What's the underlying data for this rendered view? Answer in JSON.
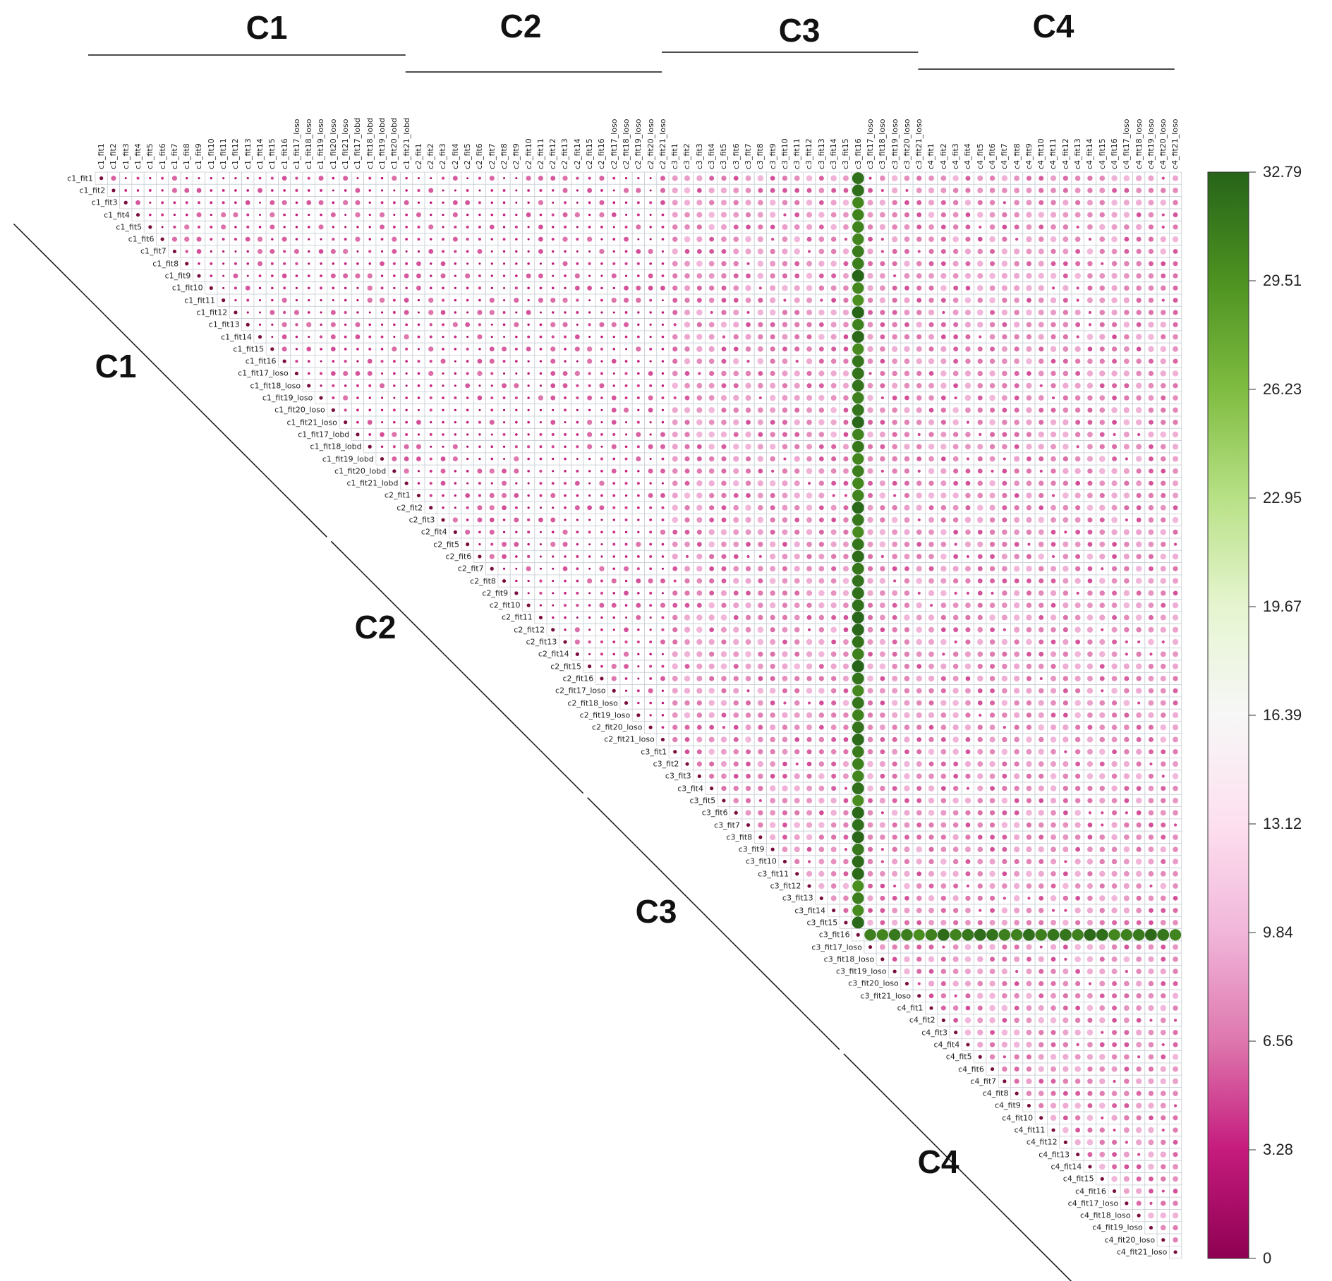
{
  "chart_data": {
    "type": "heatmap",
    "subtype": "upper-triangular correlation-style dot matrix",
    "groups": [
      "C1",
      "C2",
      "C3",
      "C4"
    ],
    "group_sizes": [
      26,
      21,
      21,
      21
    ],
    "labels": [
      "c1_fit1",
      "c1_fit2",
      "c1_fit3",
      "c1_fit4",
      "c1_fit5",
      "c1_fit6",
      "c1_fit7",
      "c1_fit8",
      "c1_fit9",
      "c1_fit10",
      "c1_fit11",
      "c1_fit12",
      "c1_fit13",
      "c1_fit14",
      "c1_fit15",
      "c1_fit16",
      "c1_fit17_loso",
      "c1_fit18_loso",
      "c1_fit19_loso",
      "c1_fit20_loso",
      "c1_fit21_loso",
      "c1_fit17_lobd",
      "c1_fit18_lobd",
      "c1_fit19_lobd",
      "c1_fit20_lobd",
      "c1_fit21_lobd",
      "c2_fit1",
      "c2_fit2",
      "c2_fit3",
      "c2_fit4",
      "c2_fit5",
      "c2_fit6",
      "c2_fit7",
      "c2_fit8",
      "c2_fit9",
      "c2_fit10",
      "c2_fit11",
      "c2_fit12",
      "c2_fit13",
      "c2_fit14",
      "c2_fit15",
      "c2_fit16",
      "c2_fit17_loso",
      "c2_fit18_loso",
      "c2_fit19_loso",
      "c2_fit20_loso",
      "c2_fit21_loso",
      "c3_fit1",
      "c3_fit2",
      "c3_fit3",
      "c3_fit4",
      "c3_fit5",
      "c3_fit6",
      "c3_fit7",
      "c3_fit8",
      "c3_fit9",
      "c3_fit10",
      "c3_fit11",
      "c3_fit12",
      "c3_fit13",
      "c3_fit14",
      "c3_fit15",
      "c3_fit16",
      "c3_fit17_loso",
      "c3_fit18_loso",
      "c3_fit19_loso",
      "c3_fit20_loso",
      "c3_fit21_loso",
      "c4_fit1",
      "c4_fit2",
      "c4_fit3",
      "c4_fit4",
      "c4_fit5",
      "c4_fit6",
      "c4_fit7",
      "c4_fit8",
      "c4_fit9",
      "c4_fit10",
      "c4_fit11",
      "c4_fit12",
      "c4_fit13",
      "c4_fit14",
      "c4_fit15",
      "c4_fit16",
      "c4_fit17_loso",
      "c4_fit18_loso",
      "c4_fit19_loso",
      "c4_fit20_loso",
      "c4_fit21_loso"
    ],
    "highlight_label": "c3_fit16",
    "highlight_values_range": [
      26.0,
      32.79
    ],
    "background_values_range": [
      0,
      10
    ],
    "diagonal_value": 0,
    "colorbar": {
      "min": 0,
      "max": 32.79,
      "ticks": [
        "32.79",
        "29.51",
        "26.23",
        "22.95",
        "19.67",
        "16.39",
        "13.12",
        "9.84",
        "6.56",
        "3.28",
        "0"
      ],
      "colors": [
        "#276419",
        "#4d9221",
        "#7fbc41",
        "#b8e186",
        "#e6f5d0",
        "#f7f7f7",
        "#fde0ef",
        "#f1b6da",
        "#de77ae",
        "#c51b7d",
        "#8e0152"
      ]
    },
    "grid": true
  }
}
